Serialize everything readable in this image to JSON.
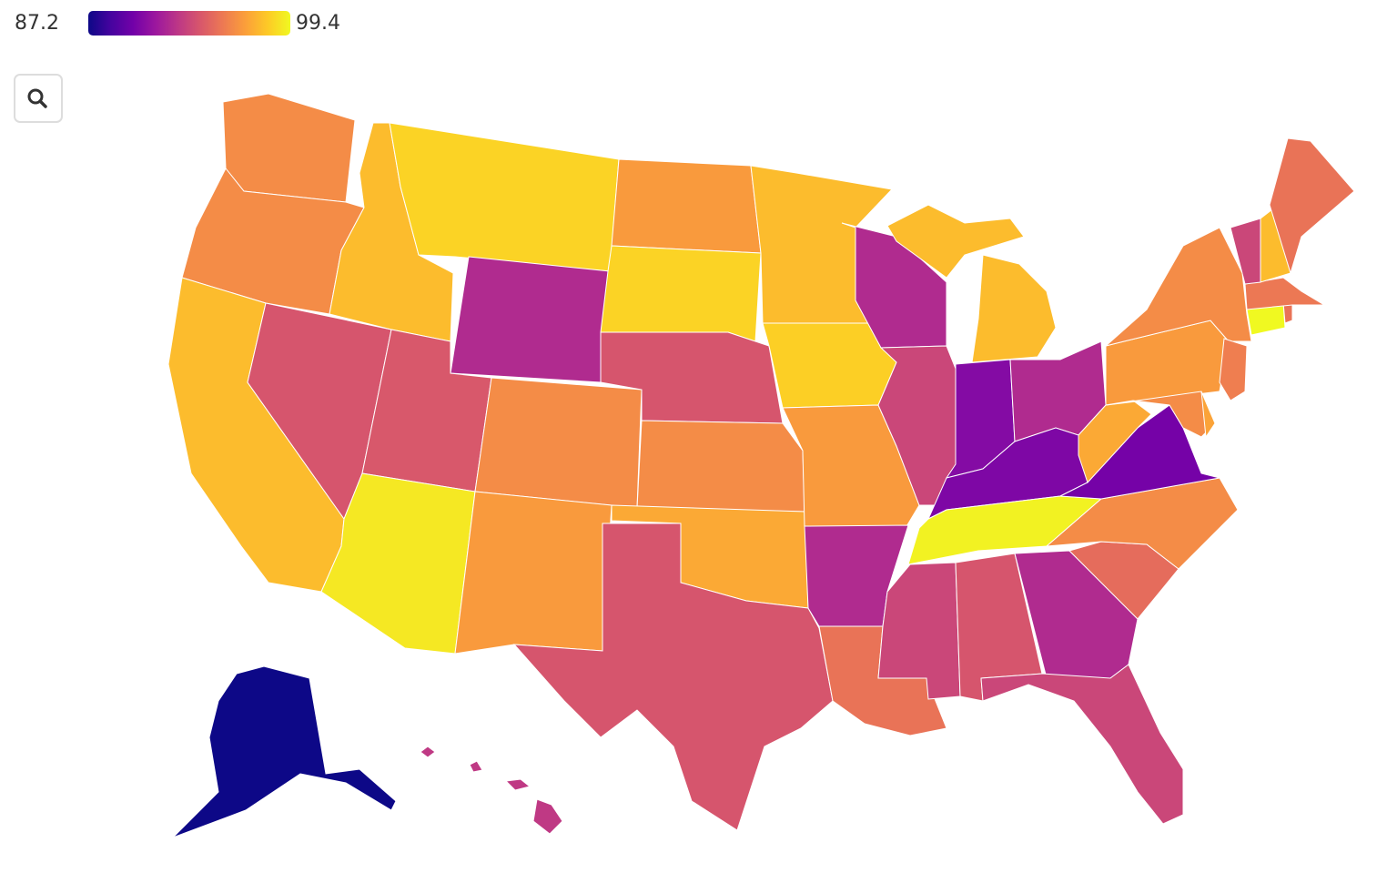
{
  "chart_data": {
    "type": "choropleth",
    "colorscale": "Plasma",
    "zlim": [
      87.2,
      99.4
    ],
    "values": [
      96.0,
      96.0,
      97.6,
      93.9,
      97.6,
      98.3,
      92.1,
      94.0,
      98.9,
      96.0,
      96.5,
      96.5,
      98.3,
      93.9,
      96.0,
      97.0,
      93.9,
      97.6,
      98.2,
      96.5,
      92.1,
      95.1,
      92.1,
      93.3,
      97.6,
      90.5,
      92.1,
      90.3,
      99.2,
      93.3,
      93.9,
      92.1,
      93.3,
      94.8,
      96.0,
      90.0,
      97.0,
      96.5,
      96.0,
      95.5,
      96.0,
      96.8,
      99.4,
      95.1,
      95.3,
      93.3,
      97.6,
      95.1,
      87.2,
      92.7
    ]
  }
}
